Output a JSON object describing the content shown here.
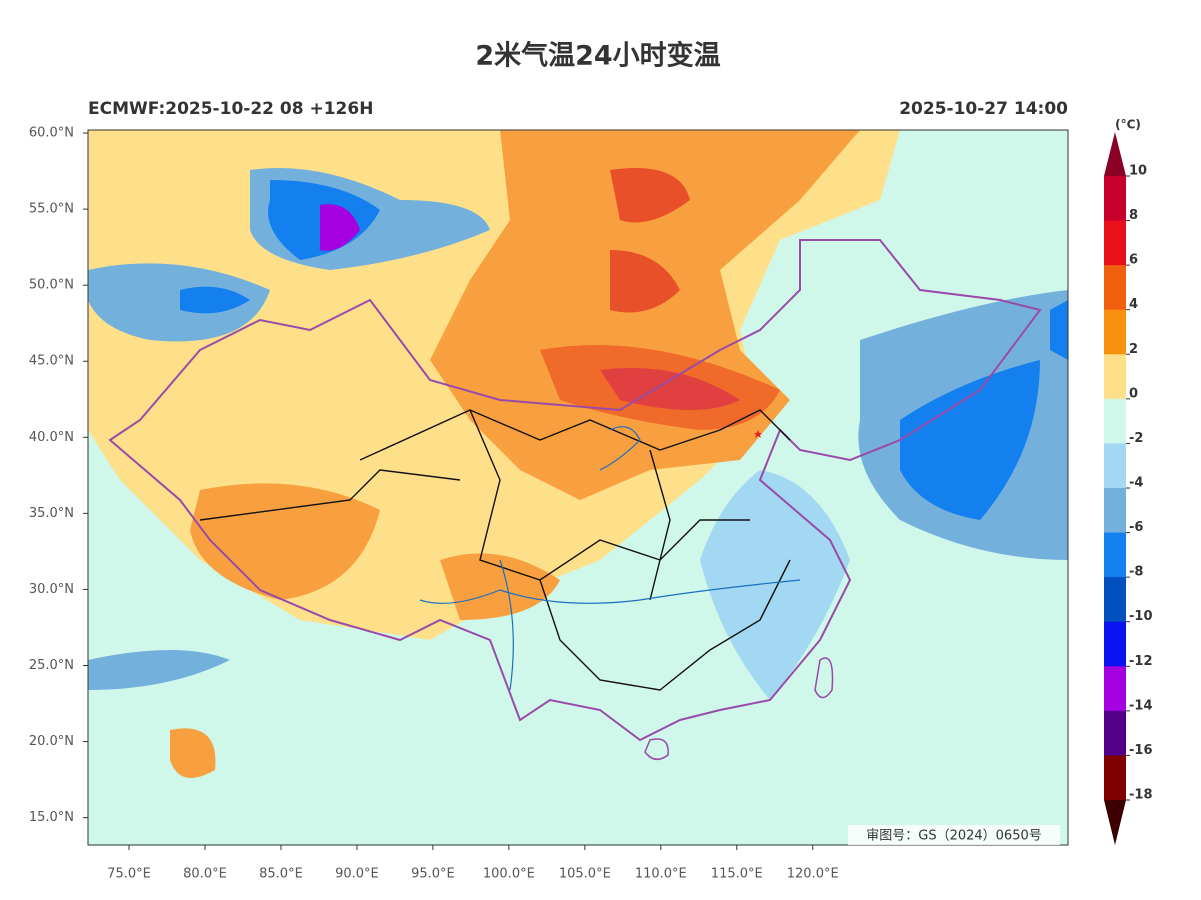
{
  "title": "2米气温24小时变温",
  "model_label": "ECMWF:2025-10-22 08 +126H",
  "valid_time": "2025-10-27 14:00",
  "map": {
    "lon_range": [
      72.3,
      136.8
    ],
    "lat_range": [
      13.2,
      60.2
    ],
    "lat_ticks": [
      {
        "value": 60,
        "label": "60.0°N"
      },
      {
        "value": 55,
        "label": "55.0°N"
      },
      {
        "value": 50,
        "label": "50.0°N"
      },
      {
        "value": 45,
        "label": "45.0°N"
      },
      {
        "value": 40,
        "label": "40.0°N"
      },
      {
        "value": 35,
        "label": "35.0°N"
      },
      {
        "value": 30,
        "label": "30.0°N"
      },
      {
        "value": 25,
        "label": "25.0°N"
      },
      {
        "value": 20,
        "label": "20.0°N"
      },
      {
        "value": 15,
        "label": "15.0°N"
      }
    ],
    "lon_ticks": [
      {
        "value": 75,
        "label": "75.0°E"
      },
      {
        "value": 80,
        "label": "80.0°E"
      },
      {
        "value": 85,
        "label": "85.0°E"
      },
      {
        "value": 90,
        "label": "90.0°E"
      },
      {
        "value": 95,
        "label": "95.0°E"
      },
      {
        "value": 100,
        "label": "100.0°E"
      },
      {
        "value": 105,
        "label": "105.0°E"
      },
      {
        "value": 110,
        "label": "110.0°E"
      },
      {
        "value": 115,
        "label": "115.0°E"
      },
      {
        "value": 120,
        "label": "120.0°E"
      }
    ],
    "approval": "审图号：GS（2024）0650号"
  },
  "colorbar": {
    "unit": "(°C)",
    "levels": [
      10,
      8,
      6,
      4,
      2,
      0,
      -2,
      -4,
      -6,
      -8,
      -10,
      -12,
      -14,
      -16,
      -18
    ],
    "colors": [
      "#8c0026",
      "#c8002c",
      "#e8101a",
      "#f0600e",
      "#f8920e",
      "#ffe08a",
      "#cff7ea",
      "#a2d8f2",
      "#74b0dc",
      "#1480f0",
      "#0050c0",
      "#0a14f0",
      "#a400e0",
      "#520088",
      "#800000",
      "#3c0000"
    ]
  }
}
